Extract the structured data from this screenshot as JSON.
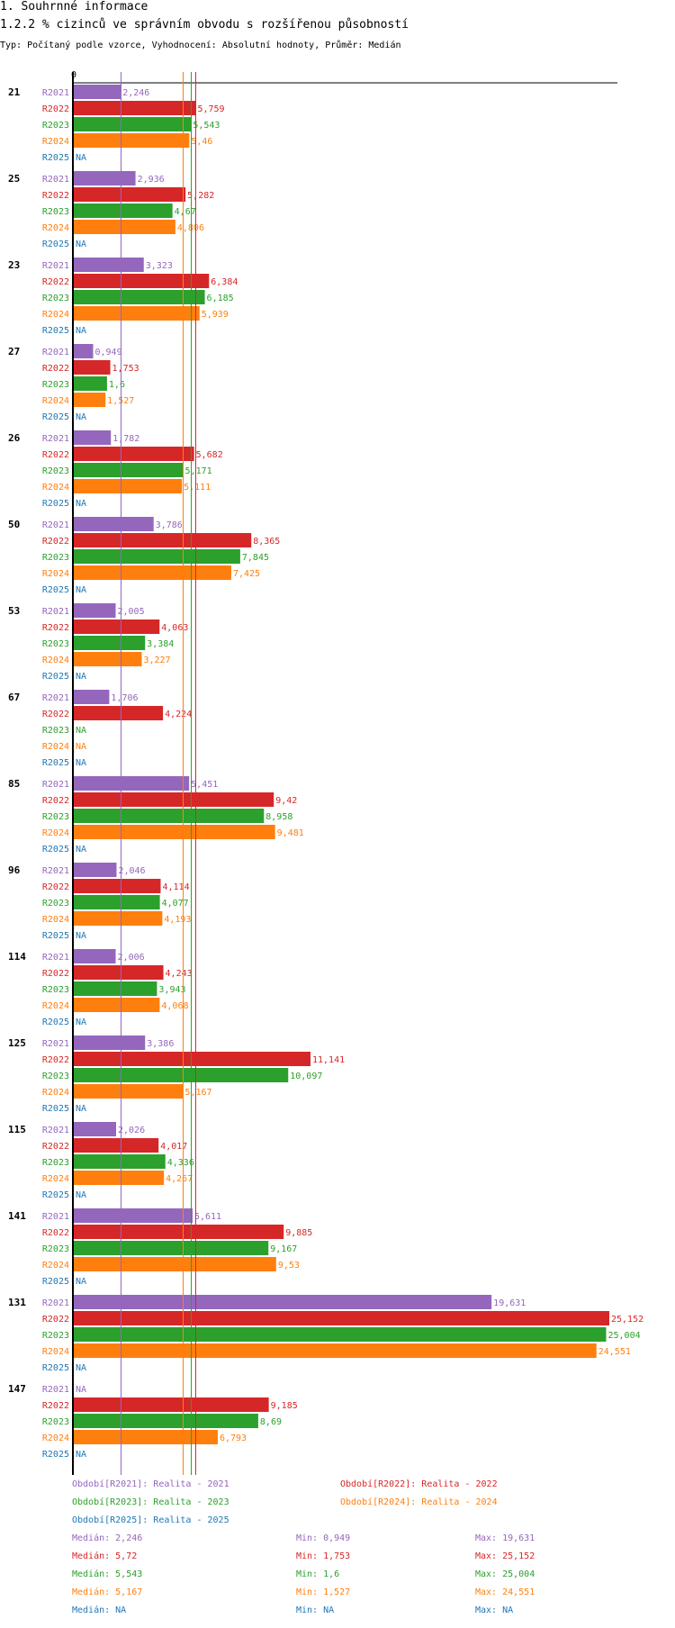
{
  "header": {
    "title": "1. Souhrnné informace",
    "subtitle": "1.2.2 % cizinců ve správním obvodu s rozšířenou působností",
    "meta": "Typ: Počítaný podle vzorce, Vyhodnocení: Absolutní hodnoty, Průměr: Medián"
  },
  "chart_data": {
    "type": "bar",
    "orientation": "horizontal",
    "x_axis_zero_label": "0",
    "xlim": [
      0,
      25.152
    ],
    "categories": [
      "21",
      "25",
      "23",
      "27",
      "26",
      "50",
      "53",
      "67",
      "85",
      "96",
      "114",
      "125",
      "115",
      "141",
      "131",
      "147"
    ],
    "series": [
      {
        "name": "R2021",
        "color": "#9467bd",
        "values": [
          2.246,
          2.936,
          3.323,
          0.949,
          1.782,
          3.786,
          2.005,
          1.706,
          5.451,
          2.046,
          2.006,
          3.386,
          2.026,
          5.611,
          19.631,
          null
        ],
        "labels": [
          "2,246",
          "2,936",
          "3,323",
          "0,949",
          "1,782",
          "3,786",
          "2,005",
          "1,706",
          "5,451",
          "2,046",
          "2,006",
          "3,386",
          "2,026",
          "5,611",
          "19,631",
          "NA"
        ]
      },
      {
        "name": "R2022",
        "color": "#d62728",
        "values": [
          5.759,
          5.282,
          6.384,
          1.753,
          5.682,
          8.365,
          4.063,
          4.224,
          9.42,
          4.114,
          4.243,
          11.141,
          4.017,
          9.885,
          25.152,
          9.185
        ],
        "labels": [
          "5,759",
          "5,282",
          "6,384",
          "1,753",
          "5,682",
          "8,365",
          "4,063",
          "4,224",
          "9,42",
          "4,114",
          "4,243",
          "11,141",
          "4,017",
          "9,885",
          "25,152",
          "9,185"
        ]
      },
      {
        "name": "R2023",
        "color": "#2ca02c",
        "values": [
          5.543,
          4.67,
          6.185,
          1.6,
          5.171,
          7.845,
          3.384,
          null,
          8.958,
          4.077,
          3.943,
          10.097,
          4.336,
          9.167,
          25.004,
          8.69
        ],
        "labels": [
          "5,543",
          "4,67",
          "6,185",
          "1,6",
          "5,171",
          "7,845",
          "3,384",
          "NA",
          "8,958",
          "4,077",
          "3,943",
          "10,097",
          "4,336",
          "9,167",
          "25,004",
          "8,69"
        ]
      },
      {
        "name": "R2024",
        "color": "#ff7f0e",
        "values": [
          5.46,
          4.806,
          5.939,
          1.527,
          5.111,
          7.425,
          3.227,
          null,
          9.481,
          4.193,
          4.068,
          5.167,
          4.267,
          9.53,
          24.551,
          6.793
        ],
        "labels": [
          "5,46",
          "4,806",
          "5,939",
          "1,527",
          "5,111",
          "7,425",
          "3,227",
          "NA",
          "9,481",
          "4,193",
          "4,068",
          "5,167",
          "4,267",
          "9,53",
          "24,551",
          "6,793"
        ]
      },
      {
        "name": "R2025",
        "color": "#1f77b4",
        "values": [
          null,
          null,
          null,
          null,
          null,
          null,
          null,
          null,
          null,
          null,
          null,
          null,
          null,
          null,
          null,
          null
        ],
        "labels": [
          "NA",
          "NA",
          "NA",
          "NA",
          "NA",
          "NA",
          "NA",
          "NA",
          "NA",
          "NA",
          "NA",
          "NA",
          "NA",
          "NA",
          "NA",
          "NA"
        ]
      }
    ],
    "median_lines": [
      2.246,
      5.72,
      5.543,
      5.167
    ],
    "legend": {
      "periods": [
        {
          "text": "Období[R2021]: Realita - 2021",
          "color": "#9467bd"
        },
        {
          "text": "Období[R2022]: Realita - 2022",
          "color": "#d62728"
        },
        {
          "text": "Období[R2023]: Realita - 2023",
          "color": "#2ca02c"
        },
        {
          "text": "Období[R2024]: Realita - 2024",
          "color": "#ff7f0e"
        },
        {
          "text": "Období[R2025]: Realita - 2025",
          "color": "#1f77b4"
        }
      ],
      "stats": [
        {
          "median": "Medián: 2,246",
          "min": "Min: 0,949",
          "max": "Max: 19,631",
          "color": "#9467bd"
        },
        {
          "median": "Medián: 5,72",
          "min": "Min: 1,753",
          "max": "Max: 25,152",
          "color": "#d62728"
        },
        {
          "median": "Medián: 5,543",
          "min": "Min: 1,6",
          "max": "Max: 25,004",
          "color": "#2ca02c"
        },
        {
          "median": "Medián: 5,167",
          "min": "Min: 1,527",
          "max": "Max: 24,551",
          "color": "#ff7f0e"
        },
        {
          "median": "Medián: NA",
          "min": "Min: NA",
          "max": "Max: NA",
          "color": "#1f77b4"
        }
      ]
    }
  }
}
